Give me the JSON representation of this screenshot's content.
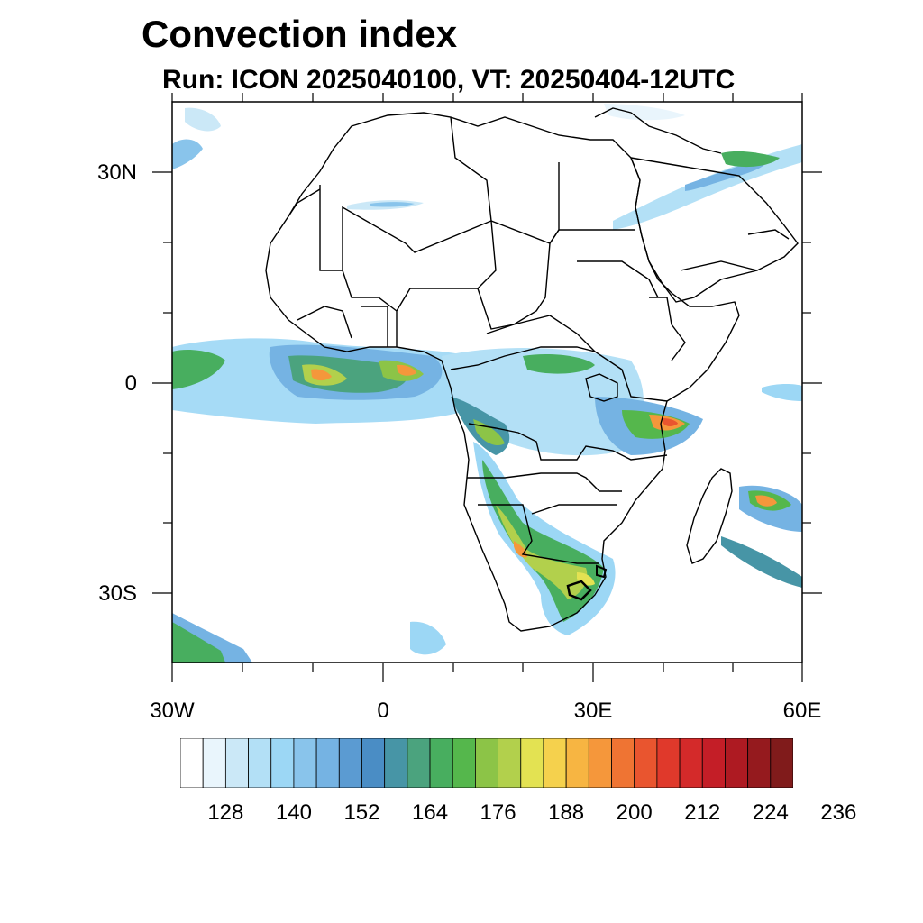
{
  "header": {
    "title": "Convection index",
    "subtitle": "Run: ICON 2025040100,  VT: 20250404-12UTC"
  },
  "map": {
    "region": "Africa",
    "projection": "cylindrical equidistant",
    "lon_range": [
      -30,
      60
    ],
    "lat_range": [
      -40,
      40
    ],
    "lat_labels": [
      "30N",
      "0",
      "30S"
    ],
    "lon_labels": [
      "30W",
      "0",
      "30E",
      "60E"
    ],
    "ocean_color": "#ffffff",
    "land_color": "#ffffff",
    "boundary_color": "#000000"
  },
  "colorbar": {
    "labels": [
      "128",
      "140",
      "152",
      "164",
      "176",
      "188",
      "200",
      "212",
      "224",
      "236"
    ],
    "colors": [
      "#ffffff",
      "#e9f5fc",
      "#cbe8f7",
      "#b3e0f6",
      "#9cd7f5",
      "#89c4eb",
      "#75b3e3",
      "#5b9bd2",
      "#4a8dc5",
      "#4795a6",
      "#4ba37e",
      "#48ae5f",
      "#55b74c",
      "#8cc447",
      "#b2d04c",
      "#e3e252",
      "#f5d14d",
      "#f7b542",
      "#f5973b",
      "#ef7433",
      "#e9552f",
      "#e0392b",
      "#d42a2a",
      "#c41e27",
      "#ae1a22",
      "#951a1e",
      "#801b1b"
    ]
  }
}
